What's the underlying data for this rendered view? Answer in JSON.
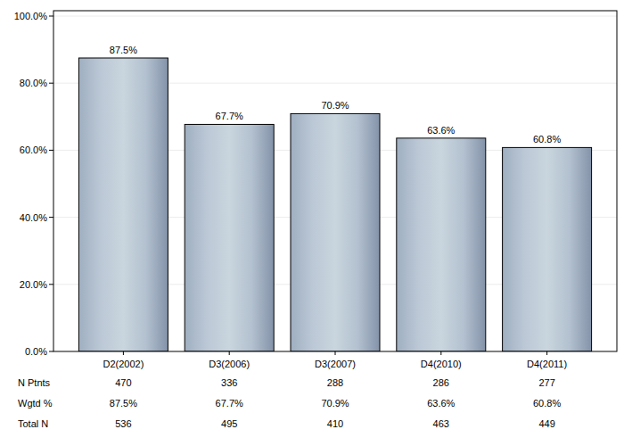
{
  "chart_data": {
    "type": "bar",
    "categories": [
      "D2(2002)",
      "D3(2006)",
      "D3(2007)",
      "D4(2010)",
      "D4(2011)"
    ],
    "values": [
      87.5,
      67.7,
      70.9,
      63.6,
      60.8
    ],
    "value_labels": [
      "87.5%",
      "67.7%",
      "70.9%",
      "63.6%",
      "60.8%"
    ],
    "data_labels": true,
    "color": "#a6b6c8",
    "ylim": [
      0,
      100
    ],
    "yticks": [
      {
        "value": 0,
        "label": "0.0%"
      },
      {
        "value": 20,
        "label": "20.0%"
      },
      {
        "value": 40,
        "label": "40.0%"
      },
      {
        "value": 60,
        "label": "60.0%"
      },
      {
        "value": 80,
        "label": "80.0%"
      },
      {
        "value": 100,
        "label": "100.0%"
      }
    ],
    "grid": true,
    "table": {
      "rows": [
        {
          "label": "N Ptnts",
          "values": [
            "470",
            "336",
            "288",
            "286",
            "277"
          ]
        },
        {
          "label": "Wgtd %",
          "values": [
            "87.5%",
            "67.7%",
            "70.9%",
            "63.6%",
            "60.8%"
          ]
        },
        {
          "label": "Total N",
          "values": [
            "536",
            "495",
            "410",
            "463",
            "449"
          ]
        }
      ]
    }
  }
}
